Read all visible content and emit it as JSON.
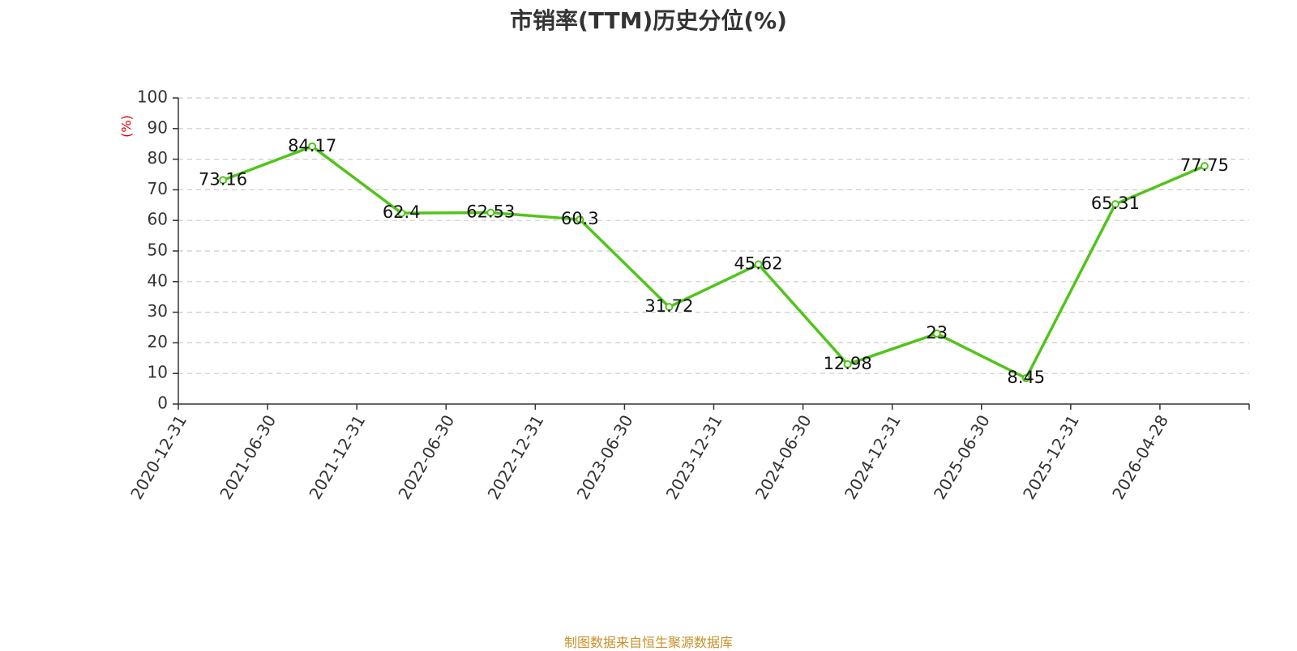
{
  "chart_data": {
    "type": "line",
    "title": "市销率(TTM)历史分位(%)",
    "ylabel": "(%)",
    "xlabel": "",
    "categories": [
      "2020-12-31",
      "2021-06-30",
      "2021-12-31",
      "2022-06-30",
      "2022-12-31",
      "2023-06-30",
      "2023-12-31",
      "2024-06-30",
      "2024-12-31",
      "2025-06-30",
      "2025-12-31",
      "2026-04-28"
    ],
    "series": [
      {
        "values": [
          73.16,
          84.17,
          62.4,
          62.53,
          60.3,
          31.72,
          45.62,
          12.98,
          23,
          8.45,
          65.31,
          77.75
        ]
      }
    ],
    "data_labels": [
      "73.16",
      "84.17",
      "62.4",
      "62.53",
      "60.3",
      "31.72",
      "45.62",
      "12.98",
      "23",
      "8.45",
      "65.31",
      "77.75"
    ],
    "ylim": [
      0,
      100
    ],
    "yticks": [
      0,
      10,
      20,
      30,
      40,
      50,
      60,
      70,
      80,
      90,
      100
    ],
    "grid": true,
    "legend": "none",
    "line_color": "#52c41a"
  },
  "source_note": "制图数据来自恒生聚源数据库"
}
